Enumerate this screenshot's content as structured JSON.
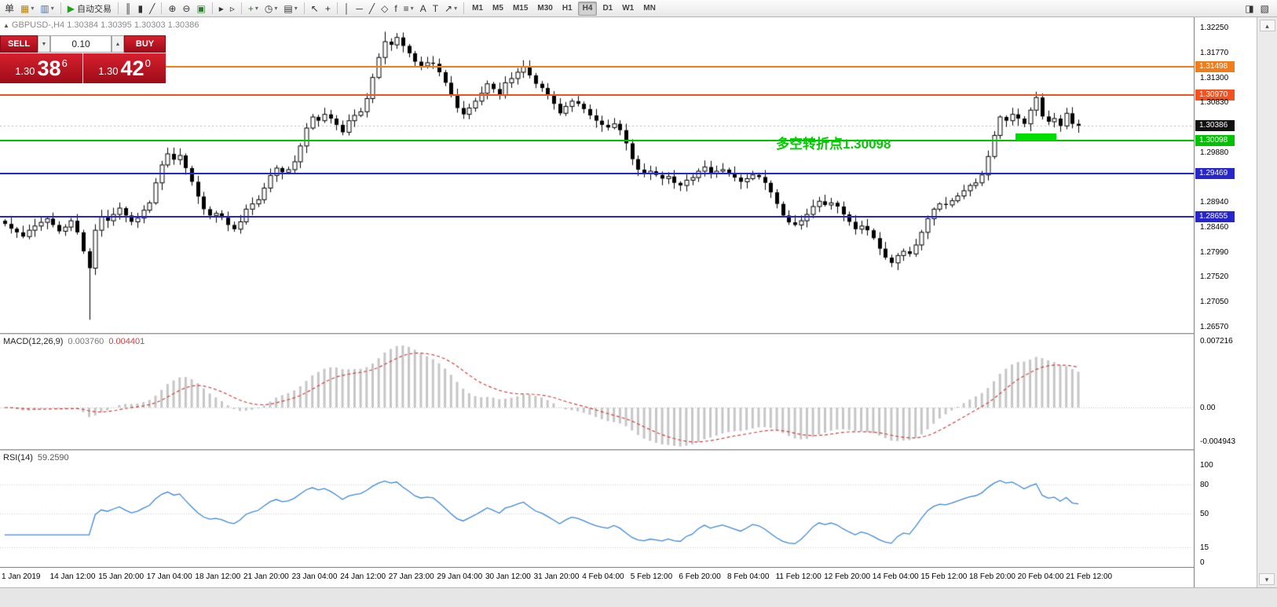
{
  "colors": {
    "trade_red": "#d6202e",
    "trade_red_dark": "#9e0c18",
    "macd_signal": "#cc4040",
    "rsi_line": "#3e87d6",
    "annotation_green": "#00cc00"
  },
  "toolbar": {
    "caret_glyph": "▾",
    "icon_groups": [
      {
        "items": [
          {
            "name": "new-order-button",
            "glyph": "单"
          },
          {
            "name": "new-chart-button",
            "glyph": "▦",
            "color": "#b8860b",
            "caret": true
          },
          {
            "name": "profiles-button",
            "glyph": "▥",
            "color": "#4a6fa5",
            "caret": true
          }
        ]
      },
      {
        "items": [
          {
            "name": "autotrading-button",
            "glyph": "▶",
            "color": "#1fa01f",
            "label": "自动交易"
          }
        ]
      },
      {
        "items": [
          {
            "name": "bar-chart-button",
            "glyph": "║"
          },
          {
            "name": "candlestick-chart-button",
            "glyph": "▮"
          },
          {
            "name": "line-chart-button",
            "glyph": "╱"
          }
        ]
      },
      {
        "items": [
          {
            "name": "zoom-in-button",
            "glyph": "⊕"
          },
          {
            "name": "zoom-out-button",
            "glyph": "⊖"
          },
          {
            "name": "tile-windows-button",
            "glyph": "▣",
            "color": "#2e7d32"
          }
        ]
      },
      {
        "items": [
          {
            "name": "auto-scroll-button",
            "glyph": "▸"
          },
          {
            "name": "chart-shift-button",
            "glyph": "▹"
          }
        ]
      },
      {
        "items": [
          {
            "name": "indicators-button",
            "glyph": "+",
            "color": "#1b8e1b",
            "caret": true
          },
          {
            "name": "periods-button",
            "glyph": "◷",
            "caret": true
          },
          {
            "name": "templates-button",
            "glyph": "▤",
            "caret": true
          }
        ]
      },
      {
        "items": [
          {
            "name": "cursor-button",
            "glyph": "↖"
          },
          {
            "name": "crosshair-button",
            "glyph": "+"
          }
        ]
      },
      {
        "items": [
          {
            "name": "vertical-line-button",
            "glyph": "│"
          },
          {
            "name": "horizontal-line-button",
            "glyph": "─"
          },
          {
            "name": "trendline-button",
            "glyph": "╱"
          },
          {
            "name": "equidistant-channel-button",
            "glyph": "◇"
          },
          {
            "name": "fibonacci-button",
            "glyph": "f"
          },
          {
            "name": "shapes-button",
            "glyph": "≡",
            "caret": true
          },
          {
            "name": "text-button",
            "glyph": "A"
          },
          {
            "name": "text-label-button",
            "glyph": "T"
          },
          {
            "name": "arrows-button",
            "glyph": "↗",
            "caret": true
          }
        ]
      }
    ],
    "timeframes": [
      "M1",
      "M5",
      "M15",
      "M30",
      "H1",
      "H4",
      "D1",
      "W1",
      "MN"
    ],
    "active_timeframe": "H4",
    "right_icons": [
      {
        "name": "data-window-icon",
        "glyph": "◨"
      },
      {
        "name": "navigator-icon",
        "glyph": "▧"
      }
    ]
  },
  "chart_header": {
    "marker_glyph": "▲",
    "symbol_info": "GBPUSD-,H4 1.30384 1.30395 1.30303 1.30386"
  },
  "trade_panel": {
    "sell_label": "SELL",
    "buy_label": "BUY",
    "volume": "0.10",
    "volume_down_glyph": "▼",
    "volume_up_glyph": "▲",
    "sell_price_main": "1.30",
    "sell_price_big": "38",
    "sell_price_sup": "6",
    "buy_price_main": "1.30",
    "buy_price_big": "42",
    "buy_price_sup": "0"
  },
  "annotation": {
    "text": "多空转折点1.30098",
    "color": "#00cc00"
  },
  "current_price": {
    "value": 1.30386,
    "label": "1.30386"
  },
  "levels": [
    {
      "price": 1.31498,
      "label": "1.31498",
      "color": "#ef7d1a"
    },
    {
      "price": 1.3097,
      "label": "1.30970",
      "color": "#f4511e"
    },
    {
      "price": 1.30098,
      "label": "1.30098",
      "color": "#00c300"
    },
    {
      "price": 1.29469,
      "label": "1.29469",
      "color": "#2626cc"
    },
    {
      "price": 1.28655,
      "label": "1.28655",
      "color": "#2626cc"
    }
  ],
  "price_axis": {
    "main_labels": [
      "1.32250",
      "1.31770",
      "1.31300",
      "1.30830",
      "1.29880",
      "1.28940",
      "1.28460",
      "1.27990",
      "1.27520",
      "1.27050",
      "1.26570"
    ]
  },
  "macd": {
    "name": "MACD(12,26,9)",
    "main_value": "0.003760",
    "signal_value": "0.004401",
    "axis": [
      "0.007216",
      "0.00",
      "-0.004943"
    ]
  },
  "rsi": {
    "name": "RSI(14)",
    "value": "59.2590",
    "axis": [
      "100",
      "80",
      "50",
      "15",
      "0"
    ]
  },
  "right_strip": {
    "up_glyph": "▴",
    "down_glyph": "▾"
  },
  "time_axis": [
    "1 Jan 2019",
    "14 Jan 12:00",
    "15 Jan 20:00",
    "17 Jan 04:00",
    "18 Jan 12:00",
    "21 Jan 20:00",
    "23 Jan 04:00",
    "24 Jan 12:00",
    "27 Jan 23:00",
    "29 Jan 04:00",
    "30 Jan 12:00",
    "31 Jan 20:00",
    "4 Feb 04:00",
    "5 Feb 12:00",
    "6 Feb 20:00",
    "8 Feb 04:00",
    "11 Feb 12:00",
    "12 Feb 20:00",
    "14 Feb 04:00",
    "15 Feb 12:00",
    "18 Feb 20:00",
    "20 Feb 04:00",
    "21 Feb 12:00"
  ],
  "chart_data": {
    "type": "candlestick",
    "symbol": "GBPUSD-",
    "timeframe": "H4",
    "ohlc_display": {
      "open": "1.30384",
      "high": "1.30395",
      "low": "1.30303",
      "close": "1.30386"
    },
    "candles": {
      "spacing_px": 7.68,
      "ylim": [
        1.2645,
        1.32443
      ],
      "closes": [
        1.2852,
        1.2843,
        1.2836,
        1.2828,
        1.284,
        1.2848,
        1.2855,
        1.2862,
        1.285,
        1.2838,
        1.2846,
        1.2858,
        1.2836,
        1.28,
        1.2768,
        1.284,
        1.2865,
        1.2858,
        1.287,
        1.2882,
        1.2868,
        1.2856,
        1.2863,
        1.2878,
        1.2892,
        1.293,
        1.2964,
        1.2985,
        1.2974,
        1.2982,
        1.2958,
        1.2932,
        1.2904,
        1.288,
        1.2868,
        1.2872,
        1.2864,
        1.285,
        1.2842,
        1.2856,
        1.288,
        1.289,
        1.2898,
        1.292,
        1.2944,
        1.2958,
        1.295,
        1.2955,
        1.297,
        1.3,
        1.3034,
        1.3055,
        1.3048,
        1.306,
        1.3052,
        1.304,
        1.3026,
        1.3048,
        1.3058,
        1.3065,
        1.309,
        1.313,
        1.3168,
        1.3198,
        1.3192,
        1.3206,
        1.319,
        1.3176,
        1.316,
        1.3152,
        1.3158,
        1.3156,
        1.314,
        1.312,
        1.3096,
        1.3072,
        1.306,
        1.3072,
        1.3085,
        1.31,
        1.3118,
        1.3108,
        1.3096,
        1.312,
        1.3128,
        1.314,
        1.315,
        1.3134,
        1.3118,
        1.311,
        1.3096,
        1.308,
        1.3062,
        1.3075,
        1.3085,
        1.308,
        1.307,
        1.3058,
        1.3048,
        1.304,
        1.3035,
        1.3042,
        1.303,
        1.3005,
        1.2975,
        1.2955,
        1.2948,
        1.2952,
        1.2945,
        1.2938,
        1.2942,
        1.293,
        1.2925,
        1.2935,
        1.294,
        1.2952,
        1.296,
        1.2948,
        1.2952,
        1.2955,
        1.2948,
        1.294,
        1.2932,
        1.2938,
        1.2945,
        1.2941,
        1.293,
        1.2912,
        1.289,
        1.2868,
        1.2855,
        1.285,
        1.2858,
        1.287,
        1.2885,
        1.2895,
        1.2888,
        1.2892,
        1.2885,
        1.287,
        1.2856,
        1.2842,
        1.2848,
        1.284,
        1.2825,
        1.2805,
        1.2788,
        1.2778,
        1.2792,
        1.28,
        1.2795,
        1.2812,
        1.2836,
        1.2862,
        1.288,
        1.289,
        1.2888,
        1.2896,
        1.2905,
        1.2915,
        1.2925,
        1.293,
        1.2945,
        1.298,
        1.302,
        1.3055,
        1.3048,
        1.306,
        1.3052,
        1.3042,
        1.3068,
        1.3092,
        1.3056,
        1.3046,
        1.3052,
        1.3038,
        1.3062,
        1.3042,
        1.30386
      ],
      "overrides": [
        {
          "index": 14,
          "low": 1.267
        },
        {
          "index": 63,
          "high": 1.3217
        },
        {
          "index": 147,
          "low": 1.277
        },
        {
          "index": 171,
          "high": 1.3103
        }
      ]
    },
    "highlight_zone": {
      "from_candle": 168,
      "to_candle": 174,
      "top_price": 1.30235,
      "bottom_price": 1.30098,
      "color": "#00dd00"
    },
    "indicators": [
      {
        "type": "macd",
        "params": [
          12,
          26,
          9
        ],
        "main": 0.00376,
        "signal": 0.004401,
        "axis_max": 0.007216,
        "axis_min": -0.004943
      },
      {
        "type": "rsi",
        "params": [
          14
        ],
        "value": 59.259,
        "axis": [
          100,
          80,
          50,
          15,
          0
        ]
      }
    ]
  }
}
